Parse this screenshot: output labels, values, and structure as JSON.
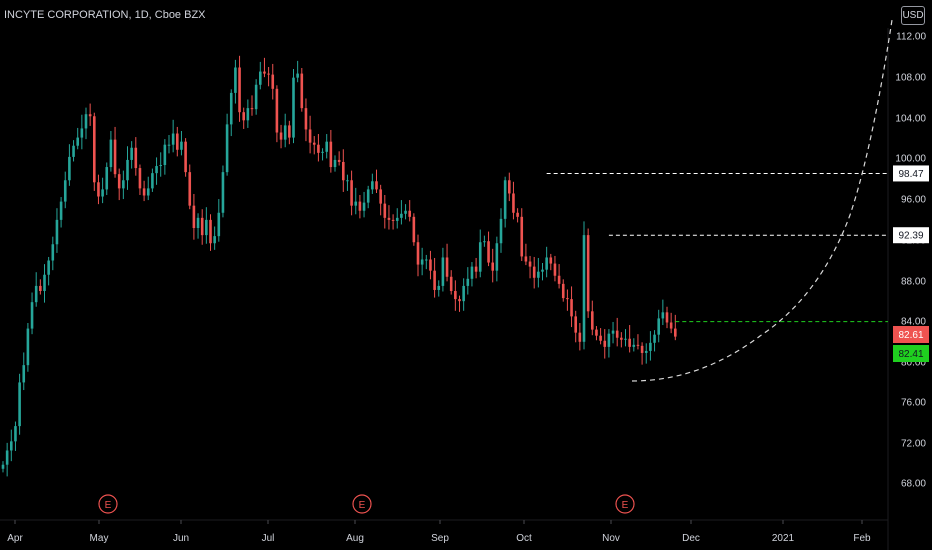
{
  "header": {
    "title": "INCYTE CORPORATION, 1D, Cboe BZX",
    "currency": "USD"
  },
  "colors": {
    "background": "#000000",
    "up": "#26a69a",
    "down": "#ef5350",
    "axis_text": "#d1d4dc",
    "annotation_line": "#ffffff",
    "current_line": "#1fd01f",
    "earnings": "#ef5350"
  },
  "chart_data": {
    "type": "candlestick",
    "title": "INCYTE CORPORATION, 1D, Cboe BZX",
    "y_ticks": [
      "112.00",
      "108.00",
      "104.00",
      "100.00",
      "96.00",
      "92.00",
      "88.00",
      "84.00",
      "80.00",
      "76.00",
      "72.00",
      "68.00"
    ],
    "ylim": [
      65.4,
      114.2
    ],
    "x_ticks": [
      "Apr",
      "May",
      "Jun",
      "Jul",
      "Aug",
      "Sep",
      "Oct",
      "Nov",
      "Dec",
      "2021",
      "Feb"
    ],
    "grid": false,
    "closes": [
      69.8,
      71.2,
      72.1,
      73.6,
      77.9,
      79.6,
      83.2,
      85.8,
      87.4,
      86.9,
      88.5,
      89.9,
      91.5,
      93.9,
      95.7,
      97.8,
      100.1,
      101.2,
      102.0,
      102.9,
      104.3,
      104.1,
      97.6,
      96.2,
      96.9,
      99.1,
      101.8,
      98.4,
      97.0,
      97.8,
      99.8,
      101.0,
      99.0,
      97.0,
      96.3,
      97.0,
      98.5,
      99.2,
      99.3,
      101.3,
      101.3,
      102.4,
      100.8,
      101.6,
      98.6,
      95.3,
      93.1,
      94.1,
      92.4,
      93.9,
      91.6,
      92.3,
      94.6,
      98.6,
      103.3,
      106.4,
      108.9,
      104.5,
      103.7,
      104.9,
      104.8,
      107.2,
      108.5,
      108.3,
      108.2,
      106.8,
      102.5,
      101.8,
      103.2,
      102.0,
      107.9,
      108.3,
      104.9,
      102.8,
      101.5,
      101.3,
      100.5,
      100.6,
      101.6,
      99.1,
      99.8,
      99.6,
      97.8,
      97.8,
      95.3,
      95.7,
      94.8,
      95.6,
      96.9,
      97.7,
      96.9,
      95.5,
      94.1,
      93.9,
      93.8,
      94.1,
      94.5,
      94.8,
      94.2,
      91.7,
      89.5,
      90.0,
      90.0,
      88.9,
      87.0,
      87.4,
      90.2,
      88.3,
      86.9,
      86.1,
      85.9,
      87.4,
      88.1,
      89.3,
      88.8,
      91.7,
      91.8,
      89.7,
      88.9,
      91.6,
      94.0,
      97.8,
      96.5,
      94.6,
      94.2,
      90.3,
      89.8,
      89.3,
      88.2,
      88.8,
      89.0,
      90.2,
      89.6,
      88.4,
      87.6,
      86.2,
      86.1,
      84.4,
      82.8,
      81.9,
      92.4,
      84.9,
      83.1,
      82.5,
      82.0,
      81.4,
      82.7,
      83.0,
      82.3,
      82.1,
      82.2,
      81.4,
      81.6,
      81.5,
      80.8,
      81.0,
      81.8,
      82.6,
      84.2,
      84.8,
      83.8,
      83.2,
      82.41
    ],
    "annotations": {
      "resistance_levels": [
        {
          "price": 98.47,
          "label": "98.47"
        },
        {
          "price": 92.39,
          "label": "92.39"
        }
      ],
      "current_price_line": {
        "price": 82.41,
        "label": "82.41"
      },
      "price_badge_red": {
        "price": 82.61,
        "label": "82.61"
      },
      "earnings_markers": [
        {
          "label": "E",
          "month": "May"
        },
        {
          "label": "E",
          "month": "Aug"
        },
        {
          "label": "E",
          "month": "Nov"
        }
      ],
      "projected_curve": "dashed rounded-bottom arc from Nov low up to top right"
    }
  }
}
